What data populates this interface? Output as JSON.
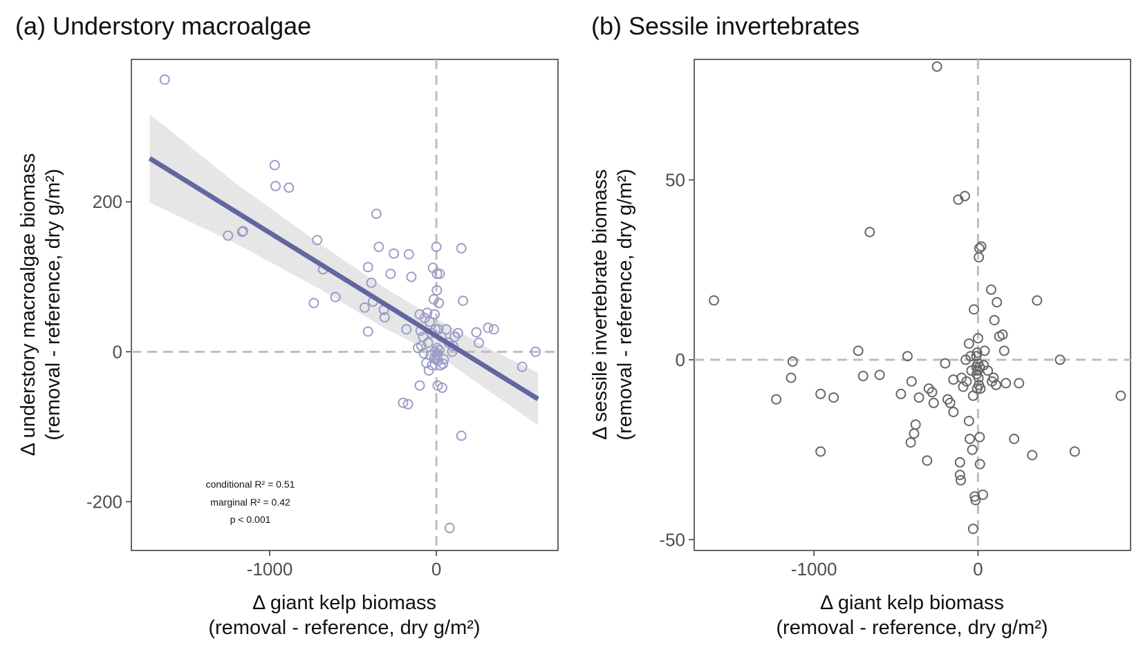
{
  "chart_data": [
    {
      "type": "scatter",
      "title": "(a) Understory macroalgae",
      "xlabel": [
        "Δ giant kelp biomass",
        "(removal - reference, dry g/m²)"
      ],
      "ylabel": [
        "Δ understory macroalgae biomass",
        "(removal - reference, dry g/m²)"
      ],
      "xlim": [
        -1830,
        730
      ],
      "ylim": [
        -265,
        390
      ],
      "xticks": [
        -1000,
        0
      ],
      "xtick_labels": [
        "-1000",
        "0"
      ],
      "yticks": [
        -200,
        0,
        200
      ],
      "ytick_labels": [
        "-200",
        "0",
        "200"
      ],
      "grid": false,
      "reference_lines": {
        "x": 0,
        "y": 0
      },
      "point_color": "#9c9cc8",
      "line_color": "#6266a0",
      "band_color": "#e6e6e6",
      "fit_line": {
        "x": [
          -1720,
          610
        ],
        "y": [
          258,
          -63
        ]
      },
      "confidence_band": {
        "x": [
          -1720,
          -1200,
          -700,
          -300,
          0,
          300,
          610
        ],
        "upper": [
          317,
          224,
          144,
          84,
          44,
          6,
          -28
        ],
        "lower": [
          199,
          144,
          84,
          30,
          -3,
          -50,
          -98
        ]
      },
      "annotations": [
        "conditional R² = 0.51",
        "marginal R² = 0.42",
        "p < 0.001"
      ],
      "points": [
        [
          -1630,
          363
        ],
        [
          -1250,
          155
        ],
        [
          -1165,
          160
        ],
        [
          -1160,
          161
        ],
        [
          -970,
          249
        ],
        [
          -965,
          221
        ],
        [
          -885,
          219
        ],
        [
          -715,
          149
        ],
        [
          -680,
          110
        ],
        [
          -735,
          65
        ],
        [
          -605,
          73
        ],
        [
          -430,
          59
        ],
        [
          -410,
          113
        ],
        [
          -390,
          92
        ],
        [
          -380,
          67
        ],
        [
          -360,
          184
        ],
        [
          -345,
          140
        ],
        [
          -315,
          56
        ],
        [
          -310,
          46
        ],
        [
          -275,
          104
        ],
        [
          -255,
          131
        ],
        [
          -180,
          30
        ],
        [
          -165,
          130
        ],
        [
          -150,
          100
        ],
        [
          -410,
          27
        ],
        [
          -200,
          -68
        ],
        [
          -170,
          -70
        ],
        [
          -110,
          5
        ],
        [
          -100,
          50
        ],
        [
          -95,
          28
        ],
        [
          -90,
          8
        ],
        [
          -80,
          20
        ],
        [
          -75,
          -2
        ],
        [
          -70,
          45
        ],
        [
          -60,
          -15
        ],
        [
          -55,
          52
        ],
        [
          -50,
          12
        ],
        [
          -45,
          -25
        ],
        [
          -40,
          40
        ],
        [
          -35,
          -5
        ],
        [
          -30,
          25
        ],
        [
          -25,
          -18
        ],
        [
          -20,
          112
        ],
        [
          -15,
          70
        ],
        [
          -12,
          -8
        ],
        [
          -10,
          50
        ],
        [
          -8,
          0
        ],
        [
          -5,
          30
        ],
        [
          -3,
          -10
        ],
        [
          0,
          140
        ],
        [
          2,
          -5
        ],
        [
          3,
          82
        ],
        [
          4,
          104
        ],
        [
          5,
          5
        ],
        [
          6,
          -3
        ],
        [
          8,
          -45
        ],
        [
          10,
          -12
        ],
        [
          12,
          30
        ],
        [
          15,
          65
        ],
        [
          18,
          2
        ],
        [
          20,
          104
        ],
        [
          25,
          -18
        ],
        [
          30,
          20
        ],
        [
          35,
          -48
        ],
        [
          40,
          -16
        ],
        [
          45,
          -10
        ],
        [
          60,
          30
        ],
        [
          75,
          12
        ],
        [
          80,
          -235
        ],
        [
          95,
          0
        ],
        [
          100,
          8
        ],
        [
          110,
          20
        ],
        [
          130,
          25
        ],
        [
          150,
          -112
        ],
        [
          150,
          138
        ],
        [
          160,
          68
        ],
        [
          240,
          26
        ],
        [
          255,
          12
        ],
        [
          310,
          32
        ],
        [
          345,
          30
        ],
        [
          515,
          -20
        ],
        [
          595,
          0
        ],
        [
          -100,
          -45
        ]
      ]
    },
    {
      "type": "scatter",
      "title": "(b) Sessile invertebrates",
      "xlabel": [
        "Δ giant kelp biomass",
        "(removal - reference, dry g/m²)"
      ],
      "ylabel": [
        "Δ sessile invertebrate biomass",
        "(removal - reference, dry g/m²)"
      ],
      "xlim": [
        -1730,
        930
      ],
      "ylim": [
        -53,
        83.5
      ],
      "xticks": [
        -1000,
        0
      ],
      "xtick_labels": [
        "-1000",
        "0"
      ],
      "yticks": [
        -50,
        0,
        50
      ],
      "ytick_labels": [
        "-50",
        "0",
        "50"
      ],
      "grid": false,
      "reference_lines": {
        "x": 0,
        "y": 0
      },
      "point_color": "#666666",
      "points": [
        [
          -1610,
          16.5
        ],
        [
          -1130,
          -0.5
        ],
        [
          -1140,
          -5
        ],
        [
          -1230,
          -11
        ],
        [
          -960,
          -9.5
        ],
        [
          -880,
          -10.5
        ],
        [
          -960,
          -25.5
        ],
        [
          -730,
          2.5
        ],
        [
          -700,
          -4.5
        ],
        [
          -660,
          35.5
        ],
        [
          -600,
          -4.2
        ],
        [
          -470,
          -9.5
        ],
        [
          -430,
          1
        ],
        [
          -410,
          -23
        ],
        [
          -405,
          -6
        ],
        [
          -390,
          -20.5
        ],
        [
          -380,
          -18
        ],
        [
          -360,
          -10.5
        ],
        [
          -310,
          -28
        ],
        [
          -300,
          -8
        ],
        [
          -280,
          -9
        ],
        [
          -270,
          -12
        ],
        [
          -250,
          81.5
        ],
        [
          -200,
          -1
        ],
        [
          -185,
          -11
        ],
        [
          -170,
          -12
        ],
        [
          -150,
          -5.5
        ],
        [
          -150,
          -14.5
        ],
        [
          -120,
          44.5
        ],
        [
          -110,
          -28.5
        ],
        [
          -110,
          -32
        ],
        [
          -105,
          -33.5
        ],
        [
          -100,
          -5
        ],
        [
          -90,
          -7.5
        ],
        [
          -80,
          45.5
        ],
        [
          -75,
          0
        ],
        [
          -70,
          -6
        ],
        [
          -55,
          -17
        ],
        [
          -55,
          4.5
        ],
        [
          -50,
          -22
        ],
        [
          -45,
          1
        ],
        [
          -40,
          -3
        ],
        [
          -35,
          -25
        ],
        [
          -30,
          -10
        ],
        [
          -30,
          -47
        ],
        [
          -25,
          14
        ],
        [
          -20,
          -38
        ],
        [
          -15,
          -39
        ],
        [
          -10,
          -2
        ],
        [
          -10,
          1
        ],
        [
          -8,
          -4
        ],
        [
          -5,
          -8
        ],
        [
          -5,
          2
        ],
        [
          -2,
          -3
        ],
        [
          0,
          6
        ],
        [
          0,
          -1
        ],
        [
          3,
          -5
        ],
        [
          5,
          28.5
        ],
        [
          5,
          -7
        ],
        [
          8,
          31
        ],
        [
          10,
          -2
        ],
        [
          10,
          -21.5
        ],
        [
          12,
          -29
        ],
        [
          15,
          -8
        ],
        [
          20,
          31.5
        ],
        [
          30,
          -37.5
        ],
        [
          35,
          -1.5
        ],
        [
          40,
          2.5
        ],
        [
          60,
          -3
        ],
        [
          80,
          19.5
        ],
        [
          85,
          -6
        ],
        [
          95,
          -5
        ],
        [
          100,
          11
        ],
        [
          110,
          -7
        ],
        [
          115,
          16
        ],
        [
          130,
          6.5
        ],
        [
          150,
          7
        ],
        [
          160,
          2.5
        ],
        [
          170,
          -6.5
        ],
        [
          220,
          -22
        ],
        [
          250,
          -6.5
        ],
        [
          330,
          -26.5
        ],
        [
          360,
          16.5
        ],
        [
          500,
          0
        ],
        [
          590,
          -25.5
        ],
        [
          870,
          -10
        ]
      ]
    }
  ]
}
